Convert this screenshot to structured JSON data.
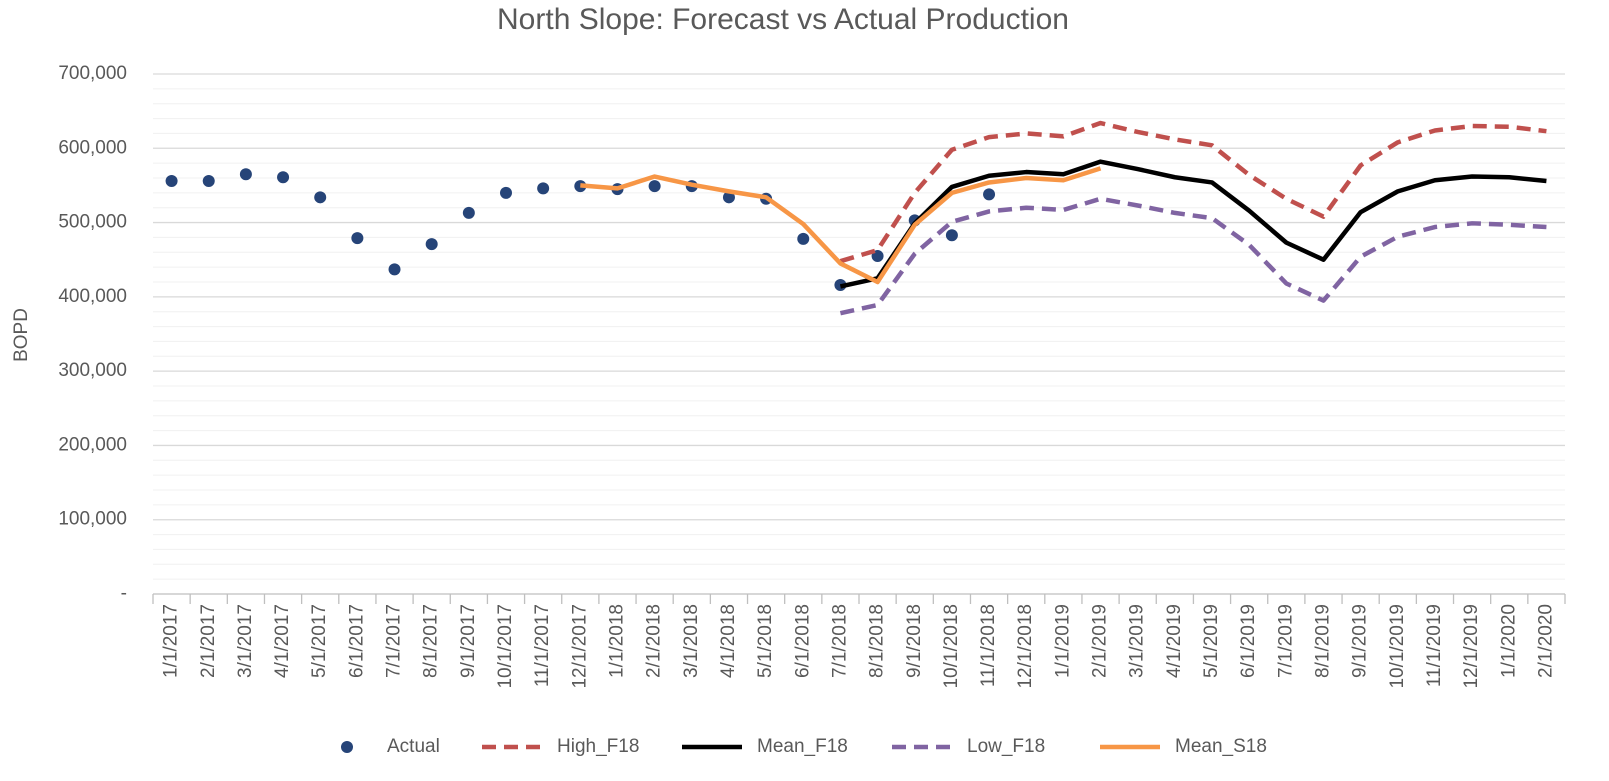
{
  "chart_data": {
    "type": "line",
    "title": "North Slope: Forecast vs Actual Production",
    "y_label": "BOPD",
    "categories": [
      "1/1/2017",
      "2/1/2017",
      "3/1/2017",
      "4/1/2017",
      "5/1/2017",
      "6/1/2017",
      "7/1/2017",
      "8/1/2017",
      "9/1/2017",
      "10/1/2017",
      "11/1/2017",
      "12/1/2017",
      "1/1/2018",
      "2/1/2018",
      "3/1/2018",
      "4/1/2018",
      "5/1/2018",
      "6/1/2018",
      "7/1/2018",
      "8/1/2018",
      "9/1/2018",
      "10/1/2018",
      "11/1/2018",
      "12/1/2018",
      "1/1/2019",
      "2/1/2019",
      "3/1/2019",
      "4/1/2019",
      "5/1/2019",
      "6/1/2019",
      "7/1/2019",
      "8/1/2019",
      "9/1/2019",
      "10/1/2019",
      "11/1/2019",
      "12/1/2019",
      "1/1/2020",
      "2/1/2020"
    ],
    "series": [
      {
        "name": "Actual",
        "color": "#264478",
        "mode": "markers",
        "values": [
          556000,
          556000,
          565000,
          561000,
          534000,
          479000,
          437000,
          471000,
          513000,
          540000,
          546000,
          549000,
          545000,
          549000,
          549000,
          534000,
          532000,
          478000,
          416000,
          455000,
          503000,
          483000,
          538000,
          null,
          null,
          null,
          null,
          null,
          null,
          null,
          null,
          null,
          null,
          null,
          null,
          null,
          null,
          null
        ]
      },
      {
        "name": "High_F18",
        "color": "#c0504d",
        "mode": "line",
        "dash": true,
        "values": [
          null,
          null,
          null,
          null,
          null,
          null,
          null,
          null,
          null,
          null,
          null,
          null,
          null,
          null,
          null,
          null,
          null,
          null,
          448000,
          463000,
          540000,
          598000,
          615000,
          620000,
          616000,
          634000,
          622000,
          612000,
          604000,
          564000,
          532000,
          508000,
          577000,
          608000,
          624000,
          630000,
          629000,
          623000
        ]
      },
      {
        "name": "Mean_F18",
        "color": "#000000",
        "mode": "line",
        "dash": false,
        "values": [
          null,
          null,
          null,
          null,
          null,
          null,
          null,
          null,
          null,
          null,
          null,
          null,
          null,
          null,
          null,
          null,
          null,
          null,
          414000,
          425000,
          499000,
          548000,
          563000,
          568000,
          565000,
          582000,
          572000,
          561000,
          554000,
          516000,
          473000,
          450000,
          514000,
          542000,
          557000,
          562000,
          561000,
          556000
        ]
      },
      {
        "name": "Low_F18",
        "color": "#8064a2",
        "mode": "line",
        "dash": true,
        "values": [
          null,
          null,
          null,
          null,
          null,
          null,
          null,
          null,
          null,
          null,
          null,
          null,
          null,
          null,
          null,
          null,
          null,
          null,
          378000,
          389000,
          458000,
          501000,
          515000,
          520000,
          517000,
          532000,
          523000,
          513000,
          506000,
          470000,
          418000,
          395000,
          454000,
          481000,
          494000,
          499000,
          497000,
          494000
        ]
      },
      {
        "name": "Mean_S18",
        "color": "#f79646",
        "mode": "line",
        "dash": false,
        "values": [
          null,
          null,
          null,
          null,
          null,
          null,
          null,
          null,
          null,
          null,
          null,
          550000,
          546000,
          562000,
          551000,
          542000,
          534000,
          498000,
          445000,
          420000,
          497000,
          540000,
          554000,
          560000,
          557000,
          573000,
          null,
          null,
          null,
          null,
          null,
          null,
          null,
          null,
          null,
          null,
          null,
          null
        ]
      }
    ],
    "ylim": [
      0,
      700000
    ],
    "yticks": [
      {
        "value": 0,
        "label": "-"
      },
      {
        "value": 100000,
        "label": "100,000"
      },
      {
        "value": 200000,
        "label": "200,000"
      },
      {
        "value": 300000,
        "label": "300,000"
      },
      {
        "value": 400000,
        "label": "400,000"
      },
      {
        "value": 500000,
        "label": "500,000"
      },
      {
        "value": 600000,
        "label": "600,000"
      },
      {
        "value": 700000,
        "label": "700,000"
      }
    ],
    "minor_yticks": [
      20000,
      40000,
      60000,
      80000,
      120000,
      140000,
      160000,
      180000,
      220000,
      240000,
      260000,
      280000,
      320000,
      340000,
      360000,
      380000,
      420000,
      440000,
      460000,
      480000,
      520000,
      540000,
      560000,
      580000,
      620000,
      640000,
      660000,
      680000
    ],
    "grid": true,
    "legend": "bottom"
  }
}
